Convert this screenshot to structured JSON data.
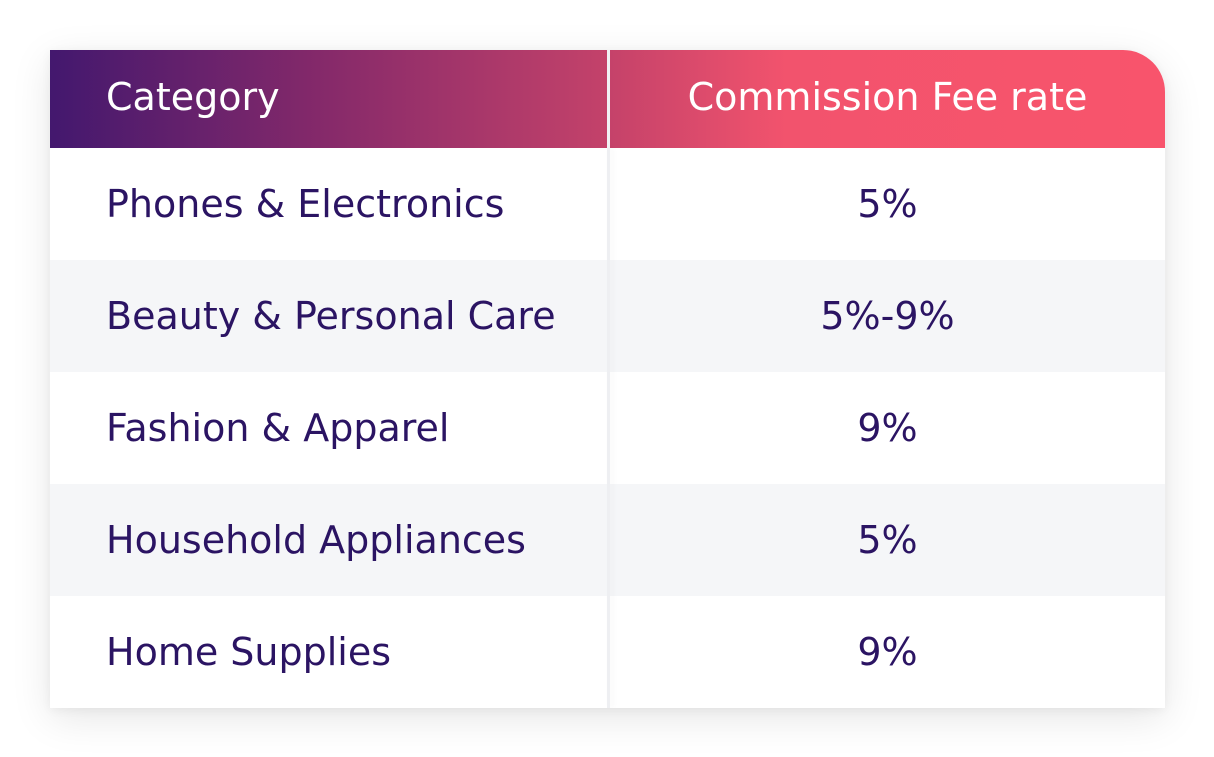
{
  "table": {
    "headers": {
      "category": "Category",
      "rate": "Commission Fee rate"
    },
    "rows": [
      {
        "category": "Phones & Electronics",
        "rate": "5%"
      },
      {
        "category": "Beauty & Personal Care",
        "rate": "5%-9%"
      },
      {
        "category": "Fashion & Apparel",
        "rate": "9%"
      },
      {
        "category": "Household Appliances",
        "rate": "5%"
      },
      {
        "category": "Home Supplies",
        "rate": "9%"
      }
    ]
  },
  "colors": {
    "header_gradient_start": "#43186e",
    "header_gradient_end": "#f8546c",
    "text": "#2b1463",
    "alt_row": "#f5f6f8"
  }
}
